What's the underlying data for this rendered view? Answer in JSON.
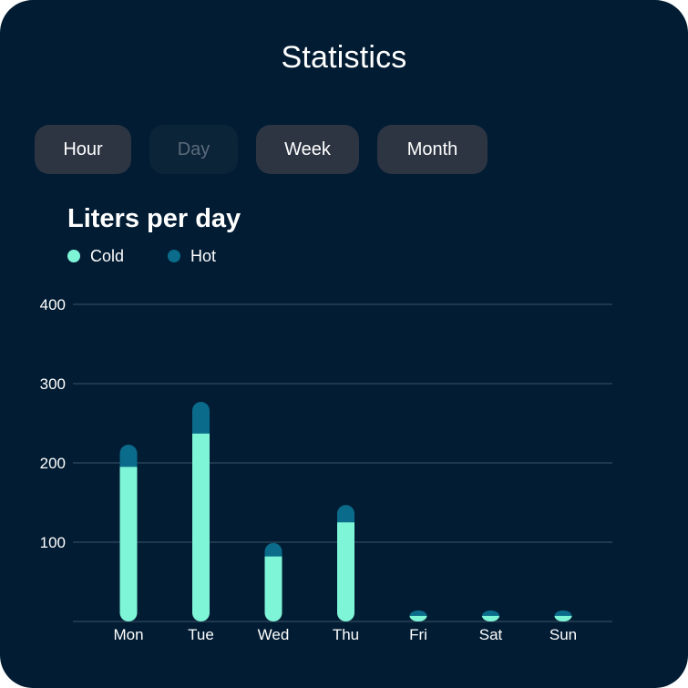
{
  "header": {
    "title": "Statistics"
  },
  "tabs": [
    {
      "label": "Hour",
      "state": "normal"
    },
    {
      "label": "Day",
      "state": "disabled"
    },
    {
      "label": "Week",
      "state": "normal"
    },
    {
      "label": "Month",
      "state": "normal"
    }
  ],
  "colors": {
    "background": "#021c33",
    "cold": "#7ff5d8",
    "hot": "#0b6b8a",
    "grid": "#3a5468",
    "tab": "#2d3543",
    "tab_disabled": "#0c2438"
  },
  "chart_data": {
    "type": "bar",
    "stacked": true,
    "title": "Liters per day",
    "categories": [
      "Mon",
      "Tue",
      "Wed",
      "Thu",
      "Fri",
      "Sat",
      "Sun"
    ],
    "series": [
      {
        "name": "Cold",
        "values": [
          195,
          237,
          82,
          125,
          7,
          7,
          7
        ]
      },
      {
        "name": "Hot",
        "values": [
          28,
          40,
          17,
          22,
          7,
          7,
          7
        ]
      }
    ],
    "yticks": [
      "100",
      "200",
      "300",
      "400"
    ],
    "ylim": [
      0,
      400
    ],
    "grid": true,
    "legend_position": "top-left"
  }
}
